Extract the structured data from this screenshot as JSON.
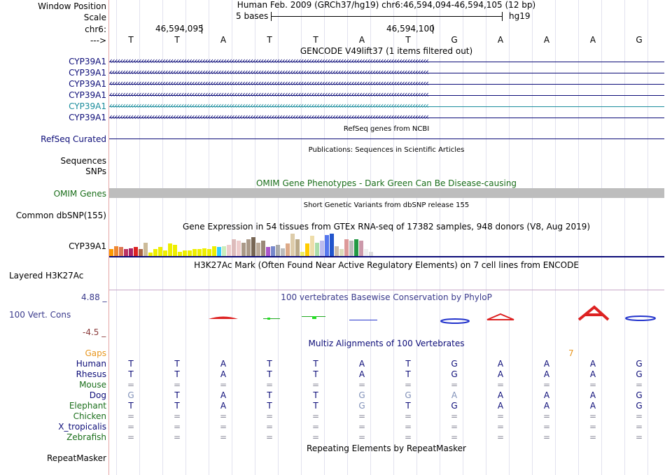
{
  "header": {
    "window_position_label": "Window Position",
    "window_position_value": "Human Feb. 2009 (GRCh37/hg19)   chr6:46,594,094-46,594,105 (12 bp)",
    "scale_label": "Scale",
    "scale_bases": "5 bases",
    "scale_assembly": "hg19",
    "chrom_label": "chr6:",
    "coord_left": "46,594,095",
    "coord_right": "46,594,100",
    "seq_label": "--->",
    "sequence": [
      "T",
      "T",
      "A",
      "T",
      "T",
      "A",
      "T",
      "G",
      "A",
      "A",
      "A",
      "G"
    ]
  },
  "gencode": {
    "title": "GENCODE V49lift37 (1 items filtered out)",
    "transcripts": [
      {
        "label": "CYP39A1",
        "color": "#0c0c78"
      },
      {
        "label": "CYP39A1",
        "color": "#0c0c78"
      },
      {
        "label": "CYP39A1",
        "color": "#0c0c78"
      },
      {
        "label": "CYP39A1",
        "color": "#0c0c78"
      },
      {
        "label": "CYP39A1",
        "color": "#1a8c9c"
      },
      {
        "label": "CYP39A1",
        "color": "#0c0c78"
      }
    ]
  },
  "refseq": {
    "title": "RefSeq genes from NCBI",
    "label": "RefSeq Curated"
  },
  "publications": {
    "title": "Publications: Sequences in Scientific Articles",
    "label": "Sequences"
  },
  "snps": {
    "label": "SNPs"
  },
  "omim": {
    "title": "OMIM Gene Phenotypes - Dark Green Can Be Disease-causing",
    "label": "OMIM Genes"
  },
  "dbsnp": {
    "title": "Short Genetic Variants from dbSNP release 155",
    "label": "Common dbSNP(155)"
  },
  "gtex": {
    "title": "Gene Expression in 54 tissues from GTEx RNA-seq of 17382 samples, 948 donors (V8, Aug 2019)",
    "label": "CYP39A1",
    "bars": [
      {
        "h": 0.3,
        "c": "#ff9900"
      },
      {
        "h": 0.45,
        "c": "#ee8833"
      },
      {
        "h": 0.4,
        "c": "#dd7755"
      },
      {
        "h": 0.3,
        "c": "#bb3366"
      },
      {
        "h": 0.35,
        "c": "#aa2266"
      },
      {
        "h": 0.4,
        "c": "#dd2222"
      },
      {
        "h": 0.3,
        "c": "#aa6644"
      },
      {
        "h": 0.6,
        "c": "#ccbb99"
      },
      {
        "h": 0.15,
        "c": "#eeee00"
      },
      {
        "h": 0.3,
        "c": "#eeee00"
      },
      {
        "h": 0.4,
        "c": "#eeee00"
      },
      {
        "h": 0.25,
        "c": "#eeee00"
      },
      {
        "h": 0.55,
        "c": "#eeee00"
      },
      {
        "h": 0.5,
        "c": "#eeee00"
      },
      {
        "h": 0.2,
        "c": "#eeee00"
      },
      {
        "h": 0.25,
        "c": "#eeee00"
      },
      {
        "h": 0.25,
        "c": "#eeee00"
      },
      {
        "h": 0.3,
        "c": "#eeee00"
      },
      {
        "h": 0.3,
        "c": "#eeee00"
      },
      {
        "h": 0.35,
        "c": "#eeee00"
      },
      {
        "h": 0.3,
        "c": "#eeee00"
      },
      {
        "h": 0.45,
        "c": "#eeee00"
      },
      {
        "h": 0.4,
        "c": "#33ccff"
      },
      {
        "h": 0.45,
        "c": "#cceebb"
      },
      {
        "h": 0.5,
        "c": "#eecccc"
      },
      {
        "h": 0.75,
        "c": "#ddbbbb"
      },
      {
        "h": 0.7,
        "c": "#eecccc"
      },
      {
        "h": 0.6,
        "c": "#aa9988"
      },
      {
        "h": 0.75,
        "c": "#aa9988"
      },
      {
        "h": 0.85,
        "c": "#776655"
      },
      {
        "h": 0.6,
        "c": "#bbaa99"
      },
      {
        "h": 0.7,
        "c": "#998877"
      },
      {
        "h": 0.4,
        "c": "#aa55cc"
      },
      {
        "h": 0.45,
        "c": "#7788cc"
      },
      {
        "h": 0.5,
        "c": "#aaaaaa"
      },
      {
        "h": 0.35,
        "c": "#bbbbbb"
      },
      {
        "h": 0.55,
        "c": "#ddaa88"
      },
      {
        "h": 1.0,
        "c": "#ddccaa"
      },
      {
        "h": 0.75,
        "c": "#bbaa88"
      },
      {
        "h": 0.2,
        "c": "#eeee66"
      },
      {
        "h": 0.55,
        "c": "#ffcc00"
      },
      {
        "h": 0.9,
        "c": "#eeddaa"
      },
      {
        "h": 0.6,
        "c": "#aaddaa"
      },
      {
        "h": 0.7,
        "c": "#bbbbee"
      },
      {
        "h": 0.95,
        "c": "#5577ee"
      },
      {
        "h": 1.0,
        "c": "#2255cc"
      },
      {
        "h": 0.45,
        "c": "#ccbbaa"
      },
      {
        "h": 0.3,
        "c": "#ddddbb"
      },
      {
        "h": 0.75,
        "c": "#dd9999"
      },
      {
        "h": 0.7,
        "c": "#bbbbbb"
      },
      {
        "h": 0.75,
        "c": "#229944"
      },
      {
        "h": 0.7,
        "c": "#cc99aa"
      },
      {
        "h": 0.3,
        "c": "#eeeeee"
      },
      {
        "h": 0.2,
        "c": "#dddddd"
      }
    ]
  },
  "h3k27ac": {
    "title": "H3K27Ac Mark (Often Found Near Active Regulatory Elements) on 7 cell lines from ENCODE",
    "label": "Layered H3K27Ac"
  },
  "phylop": {
    "title": "100 vertebrates Basewise Conservation by PhyloP",
    "label": "100 Vert. Cons",
    "max": "4.88 _",
    "min": "-4.5 _"
  },
  "multiz": {
    "title": "Multiz Alignments of 100 Vertebrates",
    "gaps_label": "Gaps",
    "gaps_value": "7",
    "species": [
      {
        "name": "Human",
        "color": "#0c0c78",
        "bases": [
          "T",
          "T",
          "A",
          "T",
          "T",
          "A",
          "T",
          "G",
          "A",
          "A",
          "A",
          "G"
        ]
      },
      {
        "name": "Rhesus",
        "color": "#0c0c78",
        "bases": [
          "T",
          "T",
          "A",
          "T",
          "T",
          "A",
          "T",
          "G",
          "A",
          "A",
          "A",
          "G"
        ]
      },
      {
        "name": "Mouse",
        "color": "#1a6e1a",
        "bases": [
          "=",
          "=",
          "=",
          "=",
          "=",
          "=",
          "=",
          "=",
          "=",
          "=",
          "=",
          "="
        ]
      },
      {
        "name": "Dog",
        "color": "#0c0c78",
        "bases": [
          "G",
          "T",
          "A",
          "T",
          "T",
          "G",
          "G",
          "A",
          "A",
          "A",
          "A",
          "G"
        ]
      },
      {
        "name": "Elephant",
        "color": "#1a6e1a",
        "bases": [
          "T",
          "T",
          "A",
          "T",
          "T",
          "G",
          "T",
          "G",
          "A",
          "A",
          "A",
          "G"
        ]
      },
      {
        "name": "Chicken",
        "color": "#1a6e1a",
        "bases": [
          "=",
          "=",
          "=",
          "=",
          "=",
          "=",
          "=",
          "=",
          "=",
          "=",
          "=",
          "="
        ]
      },
      {
        "name": "X_tropicalis",
        "color": "#0c0c78",
        "bases": [
          "=",
          "=",
          "=",
          "=",
          "=",
          "=",
          "=",
          "=",
          "=",
          "=",
          "=",
          "="
        ]
      },
      {
        "name": "Zebrafish",
        "color": "#1a6e1a",
        "bases": [
          "=",
          "=",
          "=",
          "=",
          "=",
          "=",
          "=",
          "=",
          "=",
          "=",
          "=",
          "="
        ]
      }
    ]
  },
  "repeatmasker": {
    "title": "Repeating Elements by RepeatMasker",
    "label": "RepeatMasker"
  }
}
